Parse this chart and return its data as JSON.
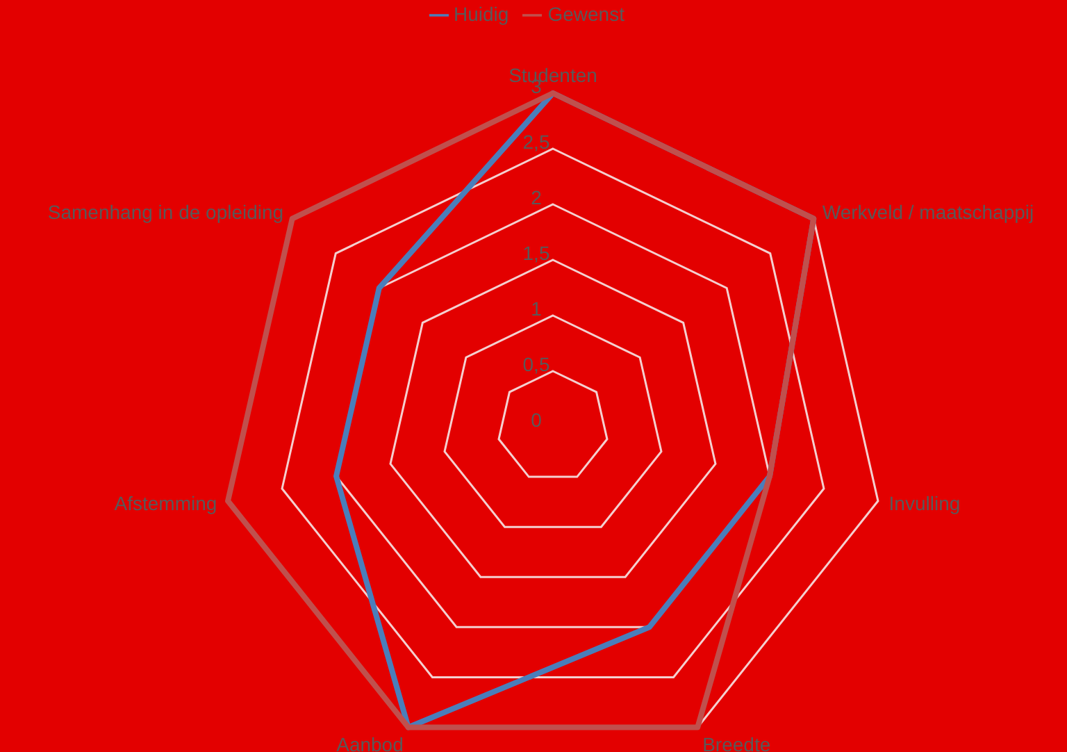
{
  "chart_data": {
    "type": "radar",
    "categories": [
      "Studenten",
      "Werkveld / maatschappij",
      "Invulling",
      "Breedte",
      "Aanbod",
      "Afstemming",
      "Samenhang in de opleiding"
    ],
    "series": [
      {
        "name": "Huidig",
        "color": "#4a7ebb",
        "values": [
          3,
          3,
          2,
          2,
          3,
          2,
          2
        ]
      },
      {
        "name": "Gewenst",
        "color": "#c0504d",
        "values": [
          3,
          3,
          2,
          3,
          3,
          3,
          3
        ]
      }
    ],
    "ylim": [
      0,
      3
    ],
    "yticks": [
      0,
      {
        "value": 0.5,
        "label": "0,5"
      },
      1,
      {
        "value": 1.5,
        "label": "1,5"
      },
      2,
      {
        "value": 2.5,
        "label": "2,5"
      },
      3
    ],
    "grid": true,
    "legend": "top",
    "marker": "none"
  }
}
